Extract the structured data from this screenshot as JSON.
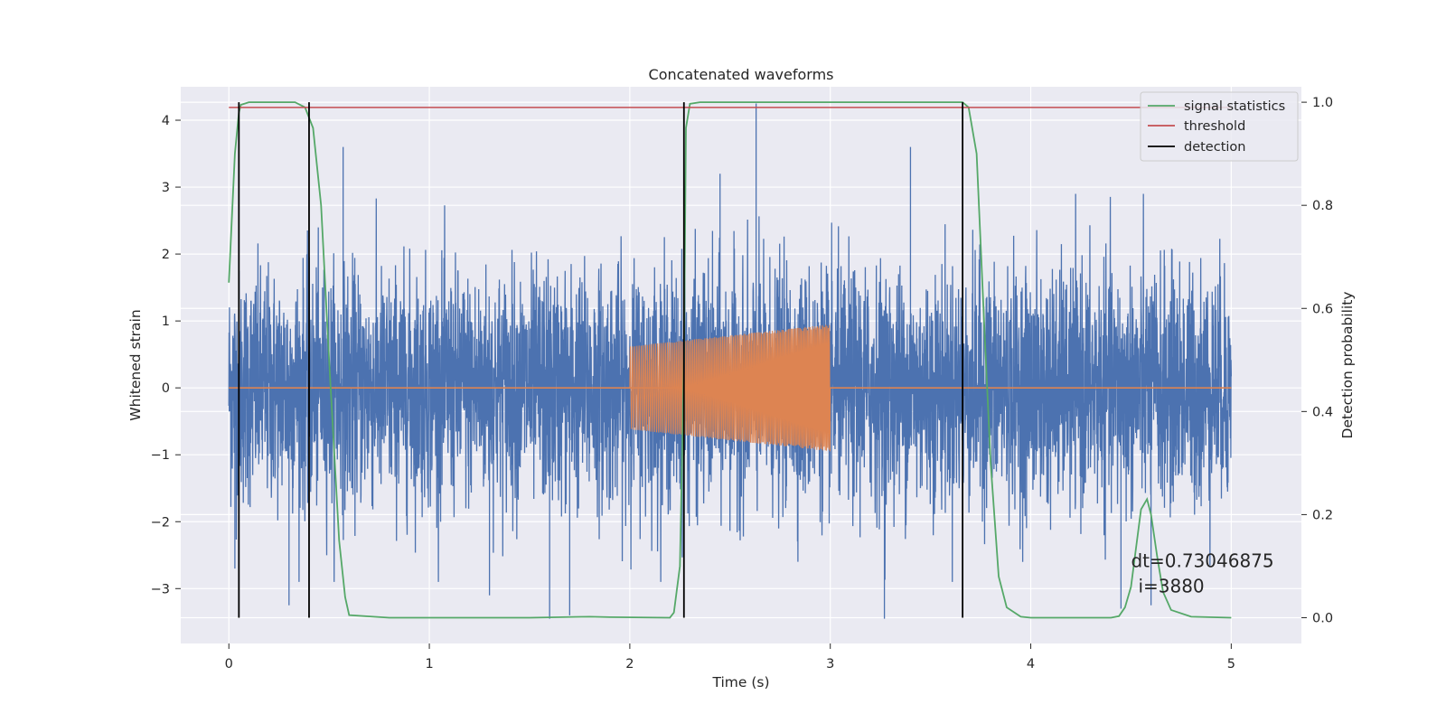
{
  "chart_data": {
    "type": "line",
    "title": "Concatenated waveforms",
    "xlabel": "Time (s)",
    "ylabel_left": "Whitened strain",
    "ylabel_right": "Detection probability",
    "xlim": [
      -0.24,
      5.35
    ],
    "ylim_left": [
      -3.82,
      4.5
    ],
    "ylim_right": [
      -0.05,
      1.03
    ],
    "x_ticks": [
      0,
      1,
      2,
      3,
      4,
      5
    ],
    "y_ticks_left": [
      -3,
      -2,
      -1,
      0,
      1,
      2,
      3,
      4
    ],
    "y_ticks_right": [
      0.0,
      0.2,
      0.4,
      0.6,
      0.8,
      1.0
    ],
    "x_tick_labels": [
      "0",
      "1",
      "2",
      "3",
      "4",
      "5"
    ],
    "y_tick_labels_left": [
      "−3",
      "−2",
      "−1",
      "0",
      "1",
      "2",
      "3",
      "4"
    ],
    "y_tick_labels_right": [
      "0.0",
      "0.2",
      "0.4",
      "0.6",
      "0.8",
      "1.0"
    ],
    "grid": true,
    "background": "#eaeaf2",
    "legend_position": "top-right",
    "legend": [
      {
        "label": "signal statistics",
        "color": "#55a868"
      },
      {
        "label": "threshold",
        "color": "#c44e52"
      },
      {
        "label": "detection",
        "color": "#000000"
      }
    ],
    "series": [
      {
        "role": "noise",
        "color": "#4c72b0",
        "axis": "left",
        "x_range": [
          0,
          5
        ],
        "typical_amplitude": 1.2,
        "spikes": [
          {
            "x": 0.03,
            "y": -2.7
          },
          {
            "x": 0.57,
            "y": 3.6
          },
          {
            "x": 0.3,
            "y": -3.25
          },
          {
            "x": 1.3,
            "y": -3.1
          },
          {
            "x": 1.6,
            "y": -3.45
          },
          {
            "x": 1.7,
            "y": -3.4
          },
          {
            "x": 2.63,
            "y": 4.25
          },
          {
            "x": 3.27,
            "y": -3.45
          },
          {
            "x": 2.45,
            "y": 3.2
          },
          {
            "x": 3.4,
            "y": 3.6
          },
          {
            "x": 4.45,
            "y": -3.3
          },
          {
            "x": 4.6,
            "y": -3.25
          }
        ]
      },
      {
        "role": "injected waveform",
        "color": "#dd8452",
        "axis": "left",
        "x_range": [
          2,
          3
        ],
        "amplitude_start": 0.62,
        "amplitude_end": 0.95,
        "zero_line_range": [
          0,
          5
        ]
      },
      {
        "name": "signal statistics",
        "color": "#55a868",
        "axis": "right",
        "x": [
          0,
          0.03,
          0.05,
          0.06,
          0.1,
          0.2,
          0.33,
          0.38,
          0.42,
          0.46,
          0.5,
          0.55,
          0.58,
          0.6,
          0.8,
          1.5,
          1.8,
          1.9,
          2.2,
          2.22,
          2.25,
          2.27,
          2.28,
          2.3,
          2.35,
          2.5,
          3.0,
          3.5,
          3.66,
          3.69,
          3.73,
          3.77,
          3.8,
          3.84,
          3.88,
          3.95,
          4.0,
          4.4,
          4.44,
          4.47,
          4.5,
          4.53,
          4.55,
          4.58,
          4.6,
          4.63,
          4.66,
          4.7,
          4.8,
          5.0
        ],
        "y": [
          0.65,
          0.9,
          0.98,
          0.995,
          1.0,
          1.0,
          1.0,
          0.99,
          0.95,
          0.8,
          0.5,
          0.15,
          0.04,
          0.005,
          0.0,
          0.0,
          0.002,
          0.001,
          0.0,
          0.01,
          0.1,
          0.5,
          0.95,
          0.997,
          1.0,
          1.0,
          1.0,
          1.0,
          1.0,
          0.99,
          0.9,
          0.55,
          0.3,
          0.08,
          0.02,
          0.002,
          0.0,
          0.0,
          0.003,
          0.02,
          0.06,
          0.15,
          0.21,
          0.23,
          0.2,
          0.12,
          0.05,
          0.015,
          0.002,
          0.0
        ]
      },
      {
        "name": "threshold",
        "color": "#c44e52",
        "axis": "right",
        "x": [
          0,
          5
        ],
        "y": [
          0.99,
          0.99
        ]
      },
      {
        "name": "detection",
        "color": "#000000",
        "axis": "right",
        "type": "vlines",
        "x": [
          0.05,
          0.4,
          2.27,
          3.66
        ],
        "ymin": 0.0,
        "ymax": 1.0
      }
    ],
    "annotation": {
      "lines": [
        "dt=0.73046875",
        "i=3880"
      ],
      "x": 4.5,
      "y_left": -3.0
    }
  }
}
